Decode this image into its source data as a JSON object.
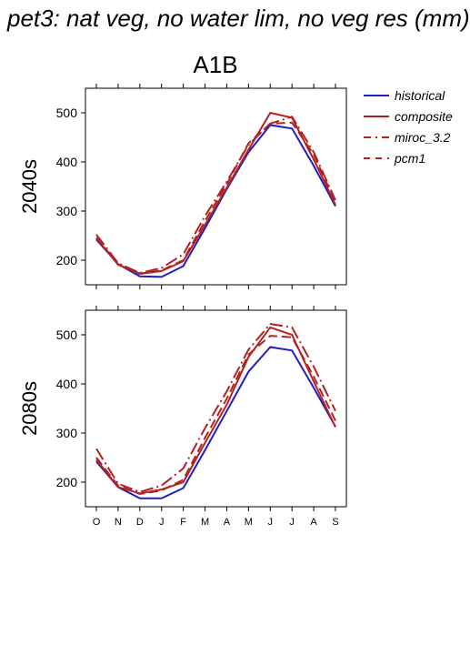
{
  "title": "pet3: nat veg, no water lim, no veg res (mm)",
  "chart_data": {
    "type": "line",
    "scenario": "A1B",
    "x": [
      "O",
      "N",
      "D",
      "J",
      "F",
      "M",
      "A",
      "M",
      "J",
      "J",
      "A",
      "S"
    ],
    "ylim": [
      150,
      550
    ],
    "yticks": [
      200,
      300,
      400,
      500
    ],
    "legend": {
      "placement": "right",
      "entries": [
        {
          "name": "historical",
          "color": "#1f1fbf",
          "dash": "solid"
        },
        {
          "name": "composite",
          "color": "#b22222",
          "dash": "solid"
        },
        {
          "name": "miroc_3.2",
          "color": "#b22222",
          "dash": "dashdot"
        },
        {
          "name": "pcm1",
          "color": "#b22222",
          "dash": "dashed"
        }
      ]
    },
    "panels": [
      {
        "label": "2040s",
        "series": [
          {
            "name": "historical",
            "values": [
              242,
              192,
              167,
              166,
              188,
              265,
              345,
              420,
              475,
              468,
              392,
              310
            ]
          },
          {
            "name": "composite",
            "values": [
              245,
              191,
              172,
              178,
              198,
              272,
              348,
              425,
              500,
              490,
              405,
              313
            ]
          },
          {
            "name": "miroc_3.2",
            "values": [
              252,
              194,
              174,
              184,
              212,
              290,
              360,
              435,
              478,
              492,
              420,
              322
            ]
          },
          {
            "name": "pcm1",
            "values": [
              246,
              192,
              173,
              179,
              200,
              280,
              355,
              438,
              478,
              480,
              415,
              318
            ]
          }
        ]
      },
      {
        "label": "2080s",
        "series": [
          {
            "name": "historical",
            "values": [
              242,
              190,
              167,
              167,
              188,
              265,
              345,
              425,
              475,
              468,
              392,
              313
            ]
          },
          {
            "name": "composite",
            "values": [
              246,
              190,
              177,
              185,
              200,
              280,
              358,
              455,
              515,
              500,
              405,
              312
            ]
          },
          {
            "name": "miroc_3.2",
            "values": [
              268,
              197,
              180,
              193,
              228,
              310,
              385,
              470,
              522,
              515,
              435,
              345
            ]
          },
          {
            "name": "pcm1",
            "values": [
              250,
              193,
              176,
              183,
              205,
              290,
              370,
              460,
              498,
              495,
              415,
              325
            ]
          }
        ]
      }
    ]
  }
}
